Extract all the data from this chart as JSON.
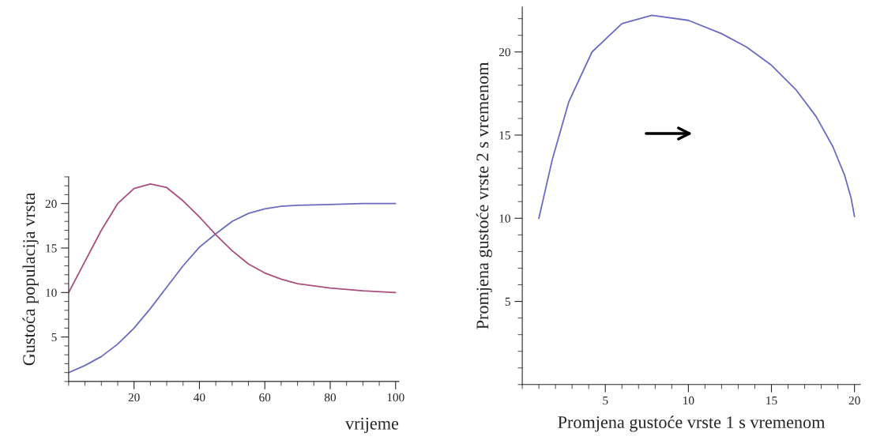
{
  "chart_data": [
    {
      "type": "line",
      "xlabel": "vrijeme",
      "ylabel": "Gustoća populacija vrsta",
      "xlim": [
        0,
        101
      ],
      "ylim": [
        0,
        23
      ],
      "xticks": [
        20,
        40,
        60,
        80,
        100
      ],
      "yticks": [
        5,
        10,
        15,
        20
      ],
      "grid": false,
      "legend": false,
      "x": [
        0,
        5,
        10,
        15,
        20,
        25,
        30,
        35,
        40,
        45,
        50,
        55,
        60,
        65,
        70,
        80,
        90,
        100
      ],
      "series": [
        {
          "color": "#6b6bc2",
          "values": [
            1,
            1.8,
            2.8,
            4.2,
            6,
            8.2,
            10.6,
            13,
            15.1,
            16.6,
            18,
            18.9,
            19.4,
            19.7,
            19.8,
            19.9,
            20,
            20
          ]
        },
        {
          "color": "#a84f7e",
          "values": [
            10,
            13.5,
            17,
            20,
            21.7,
            22.2,
            21.8,
            20.3,
            18.5,
            16.5,
            14.7,
            13.2,
            12.2,
            11.5,
            11,
            10.5,
            10.2,
            10
          ]
        }
      ]
    },
    {
      "type": "line",
      "xlabel": "Promjena gustoće vrste 1 s vremenom",
      "ylabel": "Promjena gustoće vrste 2 s vremenom",
      "xlim": [
        0,
        20.35
      ],
      "ylim": [
        0,
        22.7
      ],
      "xticks": [
        5,
        10,
        15,
        20
      ],
      "yticks": [
        5,
        10,
        15,
        20
      ],
      "grid": false,
      "legend": false,
      "series": [
        {
          "color": "#6b6bc2",
          "x": [
            1,
            1.8,
            2.8,
            4.2,
            6,
            7.8,
            10,
            12,
            13.5,
            15,
            16.5,
            17.7,
            18.7,
            19.4,
            19.8,
            20
          ],
          "values": [
            10,
            13.5,
            17,
            20,
            21.7,
            22.2,
            21.9,
            21.1,
            20.3,
            19.2,
            17.7,
            16.1,
            14.3,
            12.6,
            11.2,
            10.1
          ]
        }
      ]
    }
  ]
}
